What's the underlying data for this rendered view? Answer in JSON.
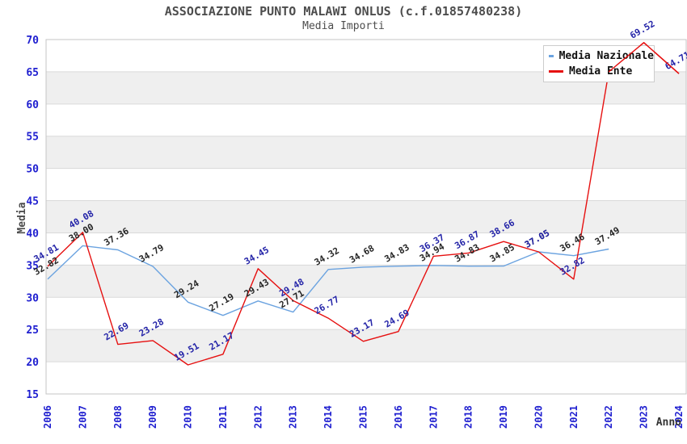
{
  "chart_data": {
    "type": "line",
    "title": "ASSOCIAZIONE PUNTO MALAWI ONLUS (c.f.01857480238)",
    "subtitle": "Media Importi",
    "xlabel": "Anno",
    "ylabel": "Media",
    "ylim": [
      15,
      70
    ],
    "ytick_step": 5,
    "grid": true,
    "legend_position": "top-right",
    "x": [
      2006,
      2007,
      2008,
      2009,
      2010,
      2011,
      2012,
      2013,
      2014,
      2015,
      2016,
      2017,
      2018,
      2019,
      2020,
      2021,
      2022,
      2023,
      2024
    ],
    "series": [
      {
        "name": "Media Nazionale",
        "color": "#6ba3e0",
        "label_color": "#262626",
        "values": [
          32.82,
          38.0,
          37.36,
          34.79,
          29.24,
          27.19,
          29.43,
          27.71,
          34.32,
          34.68,
          34.83,
          34.94,
          34.83,
          34.85,
          37.05,
          36.46,
          37.49
        ],
        "labels": [
          "32.82",
          "38.00",
          "37.36",
          "34.79",
          "29.24",
          "27.19",
          "29.43",
          "27.71",
          "34.32",
          "34.68",
          "34.83",
          "34.94",
          "34.83",
          "34.85",
          "37.05",
          "36.46",
          "37.49"
        ]
      },
      {
        "name": "Media Ente",
        "color": "#e61010",
        "label_color": "#2424a8",
        "values": [
          34.81,
          40.08,
          22.69,
          23.28,
          19.51,
          21.17,
          34.45,
          29.48,
          26.77,
          23.17,
          24.69,
          36.37,
          36.87,
          38.66,
          37.05,
          32.82,
          65.0,
          69.52,
          64.71
        ],
        "labels": [
          "34.81",
          "40.08",
          "22.69",
          "23.28",
          "19.51",
          "21.17",
          "34.45",
          "29.48",
          "26.77",
          "23.17",
          "24.69",
          "36.37",
          "36.87",
          "38.66",
          "37.05",
          "32.82",
          null,
          "69.52",
          "64.71"
        ]
      }
    ],
    "colors": {
      "axis_tick": "#2020d0",
      "band_gray": "#efefef",
      "gridline": "#dadada",
      "plot_border": "#c4c4c4",
      "axis_title": "#4d4d4d"
    }
  }
}
